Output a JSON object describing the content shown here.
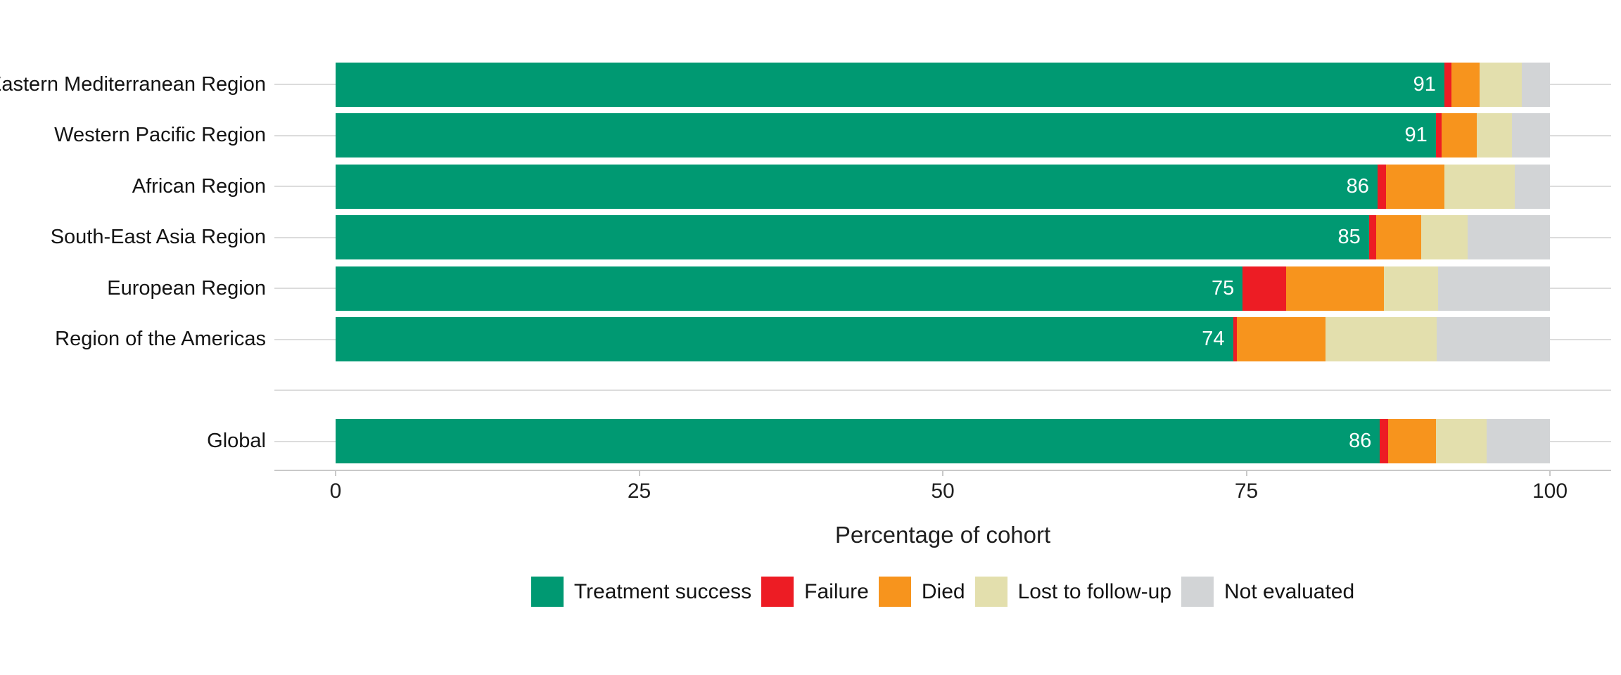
{
  "chart_data": {
    "type": "bar",
    "orientation": "horizontal",
    "stacked": true,
    "title": "",
    "xlabel": "Percentage of cohort",
    "xlim": [
      0,
      100
    ],
    "x_ticks": [
      0,
      25,
      50,
      75,
      100
    ],
    "grid": "horizontal category gridlines behind bars",
    "legend_position": "bottom center",
    "outcomes": [
      {
        "name": "Treatment success",
        "color": "#009972"
      },
      {
        "name": "Failure",
        "color": "#ED1C24"
      },
      {
        "name": "Died",
        "color": "#F7941D"
      },
      {
        "name": "Lost to follow-up",
        "color": "#E3DFAD"
      },
      {
        "name": "Not evaluated",
        "color": "#D2D4D6"
      }
    ],
    "rows": [
      {
        "region": "Eastern Mediterranean Region",
        "label": "91",
        "values": [
          91.3,
          0.6,
          2.3,
          3.5,
          2.3
        ]
      },
      {
        "region": "Western Pacific Region",
        "label": "91",
        "values": [
          90.6,
          0.5,
          2.9,
          2.9,
          3.1
        ]
      },
      {
        "region": "African Region",
        "label": "86",
        "values": [
          85.8,
          0.7,
          4.8,
          5.8,
          2.9
        ]
      },
      {
        "region": "South-East Asia Region",
        "label": "85",
        "values": [
          85.1,
          0.6,
          3.7,
          3.8,
          6.8
        ]
      },
      {
        "region": "European Region",
        "label": "75",
        "values": [
          74.7,
          3.6,
          8.0,
          4.5,
          9.2
        ]
      },
      {
        "region": "Region of the Americas",
        "label": "74",
        "values": [
          73.9,
          0.3,
          7.3,
          9.2,
          9.3
        ]
      },
      {
        "region": "",
        "label": "",
        "values": []
      },
      {
        "region": "Global",
        "label": "86",
        "values": [
          86.0,
          0.7,
          3.9,
          4.2,
          5.2
        ]
      }
    ]
  }
}
